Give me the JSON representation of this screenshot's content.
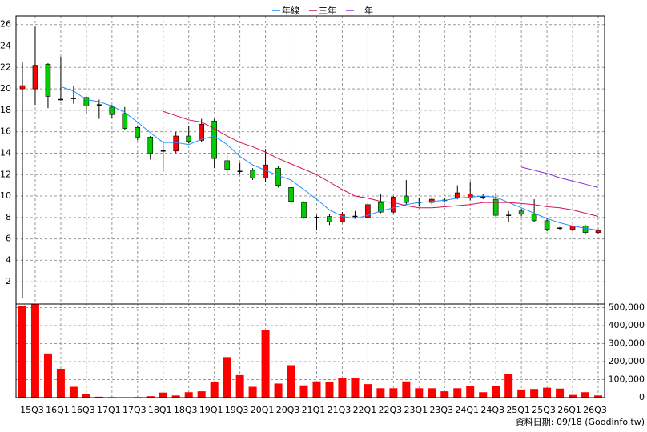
{
  "chart_data": {
    "type": "candlestick",
    "categories": [
      null,
      "15Q3",
      null,
      "16Q1",
      null,
      "16Q3",
      null,
      "17Q1",
      null,
      "17Q3",
      null,
      "18Q1",
      null,
      "18Q3",
      null,
      "19Q1",
      null,
      "19Q3",
      null,
      "20Q1",
      null,
      "20Q3",
      null,
      "21Q1",
      null,
      "21Q3",
      null,
      "22Q1",
      null,
      "22Q3",
      null,
      "23Q1",
      null,
      "23Q3",
      null,
      "24Q1",
      null,
      "24Q3",
      null,
      "25Q1",
      null,
      "25Q3",
      null,
      "26Q1",
      null,
      "26Q3"
    ],
    "open": [
      20,
      20,
      22.3,
      19,
      19.1,
      19.2,
      18.5,
      18.3,
      17.7,
      16.4,
      15.5,
      14.2,
      14.2,
      15.6,
      15.2,
      17,
      13.3,
      12.3,
      12.4,
      11.7,
      12.6,
      10.8,
      9.4,
      8,
      8.1,
      7.6,
      8.1,
      8,
      9.4,
      8.5,
      10,
      9.4,
      9.4,
      9.6,
      9.8,
      9.8,
      9.9,
      9.7,
      8.2,
      8.6,
      8.3,
      7.7,
      7,
      6.9,
      7.2,
      6.6
    ],
    "high": [
      22.5,
      25.8,
      22.4,
      23,
      20.3,
      19.3,
      19,
      18.5,
      18.3,
      16.6,
      15.6,
      15,
      16,
      16.5,
      17.2,
      17.2,
      13.8,
      13.1,
      12.6,
      14.4,
      12.8,
      11,
      9.5,
      8.2,
      8.3,
      8.5,
      8.6,
      9.5,
      10.2,
      10,
      11.5,
      9.8,
      9.9,
      9.8,
      11,
      11.3,
      10.2,
      10.3,
      8.6,
      8.8,
      9.7,
      7.9,
      7.1,
      7.2,
      7.3,
      6.9
    ],
    "low": [
      0.5,
      18.5,
      18.2,
      18.9,
      18.6,
      17.7,
      17.2,
      17.3,
      16.2,
      15.2,
      13.4,
      12.3,
      14,
      14.9,
      15,
      12.6,
      12.1,
      12,
      11.5,
      11.3,
      10.8,
      9.3,
      7.9,
      6.8,
      7.3,
      7.5,
      7.9,
      7.9,
      8.4,
      8.4,
      9.2,
      9,
      9.2,
      9.4,
      9.7,
      9.6,
      9.7,
      8,
      7.6,
      8.1,
      7.6,
      6.7,
      6.8,
      6.7,
      6.4,
      6.5
    ],
    "close": [
      20.3,
      22.2,
      19.3,
      19,
      19.1,
      18.4,
      18.5,
      17.6,
      16.3,
      15.5,
      14,
      14.2,
      15.6,
      15.1,
      16.7,
      13.5,
      12.5,
      12.3,
      11.7,
      12.9,
      11,
      9.5,
      8,
      8,
      7.6,
      8.3,
      8.1,
      9.2,
      8.5,
      9.9,
      9.4,
      9.4,
      9.7,
      9.6,
      10.3,
      10.2,
      9.9,
      8.2,
      8.2,
      8.3,
      7.7,
      6.9,
      7,
      7.2,
      6.6,
      6.8
    ],
    "up_color": "#ff0000",
    "down_color": "#00cc00",
    "flat_color": "#000000",
    "series": [
      {
        "name": "年線",
        "color": "#1e90ff",
        "values": [
          null,
          null,
          null,
          20.2,
          19.8,
          19.0,
          18.8,
          18.4,
          17.8,
          16.9,
          15.9,
          15.0,
          15.0,
          14.8,
          15.3,
          15.6,
          14.8,
          13.7,
          12.9,
          12.4,
          11.9,
          11.5,
          10.6,
          9.7,
          8.7,
          8.1,
          7.9,
          8.2,
          8.6,
          8.9,
          9.2,
          9.4,
          9.5,
          9.6,
          9.8,
          9.9,
          10.0,
          9.9,
          9.4,
          8.9,
          8.4,
          7.9,
          7.5,
          7.2,
          7.0,
          6.8
        ]
      },
      {
        "name": "三年",
        "color": "#d0105a",
        "values": [
          null,
          null,
          null,
          null,
          null,
          null,
          null,
          null,
          null,
          null,
          null,
          17.9,
          17.5,
          17.1,
          16.9,
          16.3,
          15.6,
          15.0,
          14.6,
          14.1,
          13.5,
          13.0,
          12.5,
          12.0,
          11.3,
          10.6,
          10.0,
          9.8,
          9.5,
          9.4,
          9.1,
          8.9,
          8.9,
          9.0,
          9.1,
          9.2,
          9.4,
          9.4,
          9.4,
          9.3,
          9.2,
          9.0,
          8.9,
          8.7,
          8.4,
          8.1
        ]
      },
      {
        "name": "十年",
        "color": "#8a2be2",
        "values": [
          null,
          null,
          null,
          null,
          null,
          null,
          null,
          null,
          null,
          null,
          null,
          null,
          null,
          null,
          null,
          null,
          null,
          null,
          null,
          null,
          null,
          null,
          null,
          null,
          null,
          null,
          null,
          null,
          null,
          null,
          null,
          null,
          null,
          null,
          null,
          null,
          null,
          null,
          null,
          12.7,
          12.4,
          12.1,
          11.7,
          11.4,
          11.1,
          10.8
        ]
      }
    ],
    "volume": {
      "color": "#ff0000",
      "axis": "y2",
      "values": [
        510000,
        520000,
        245000,
        160000,
        60000,
        20000,
        5000,
        3000,
        2000,
        3000,
        8000,
        28000,
        12000,
        30000,
        35000,
        88000,
        225000,
        125000,
        60000,
        375000,
        78000,
        180000,
        68000,
        90000,
        88000,
        108000,
        108000,
        75000,
        52000,
        52000,
        90000,
        52000,
        52000,
        35000,
        52000,
        65000,
        30000,
        65000,
        130000,
        45000,
        48000,
        55000,
        50000,
        15000,
        30000,
        12000
      ]
    },
    "ylim": [
      0,
      26.8
    ],
    "yticks": [
      2,
      4,
      6,
      8,
      10,
      12,
      14,
      16,
      18,
      20,
      22,
      24,
      26
    ],
    "y2lim": [
      0,
      520000
    ],
    "y2ticks": [
      0,
      {
        "value": 100000,
        "label": "100,000"
      },
      {
        "value": 200000,
        "label": "200,000"
      },
      {
        "value": 300000,
        "label": "300,000"
      },
      {
        "value": 400000,
        "label": "400,000"
      },
      {
        "value": 500000,
        "label": "500,000"
      }
    ],
    "grid": true,
    "footer": "資料日期: 09/18  (Goodinfo.tw)"
  }
}
